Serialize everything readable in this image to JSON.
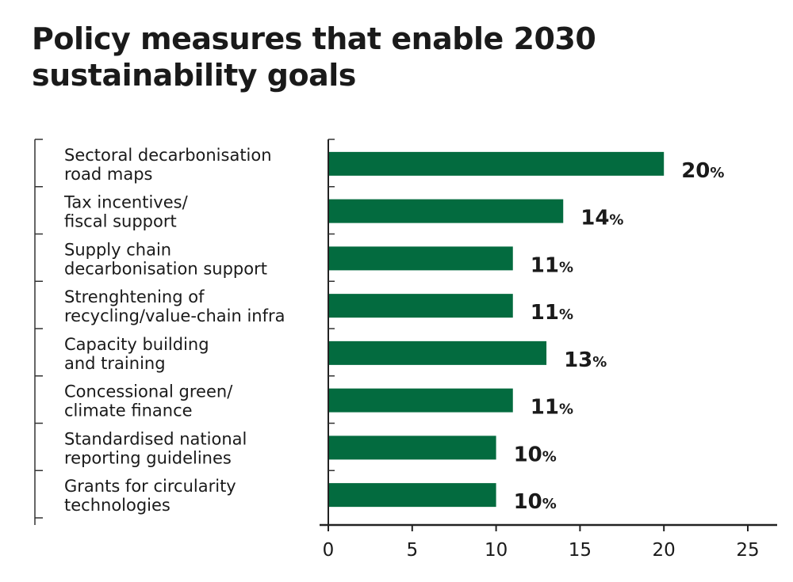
{
  "chart_data": {
    "type": "bar",
    "orientation": "horizontal",
    "title": "Policy measures that enable 2030 sustainability goals",
    "categories": [
      [
        "Sectoral decarbonisation",
        "road maps"
      ],
      [
        "Tax incentives/",
        "fiscal support"
      ],
      [
        "Supply chain",
        "decarbonisation support"
      ],
      [
        "Strenghtening of",
        "recycling/value-chain infra"
      ],
      [
        "Capacity building",
        "and training"
      ],
      [
        "Concessional green/",
        "climate finance"
      ],
      [
        "Standardised national",
        "reporting guidelines"
      ],
      [
        "Grants for circularity",
        "technologies"
      ]
    ],
    "values": [
      20,
      14,
      11,
      11,
      13,
      11,
      10,
      10
    ],
    "value_suffix": "%",
    "xlabel": "",
    "ylabel": "",
    "xlim": [
      0,
      25
    ],
    "xticks": [
      "0",
      "5",
      "10",
      "15",
      "20",
      "25"
    ],
    "grid": false,
    "bar_color": "#036b3f"
  }
}
